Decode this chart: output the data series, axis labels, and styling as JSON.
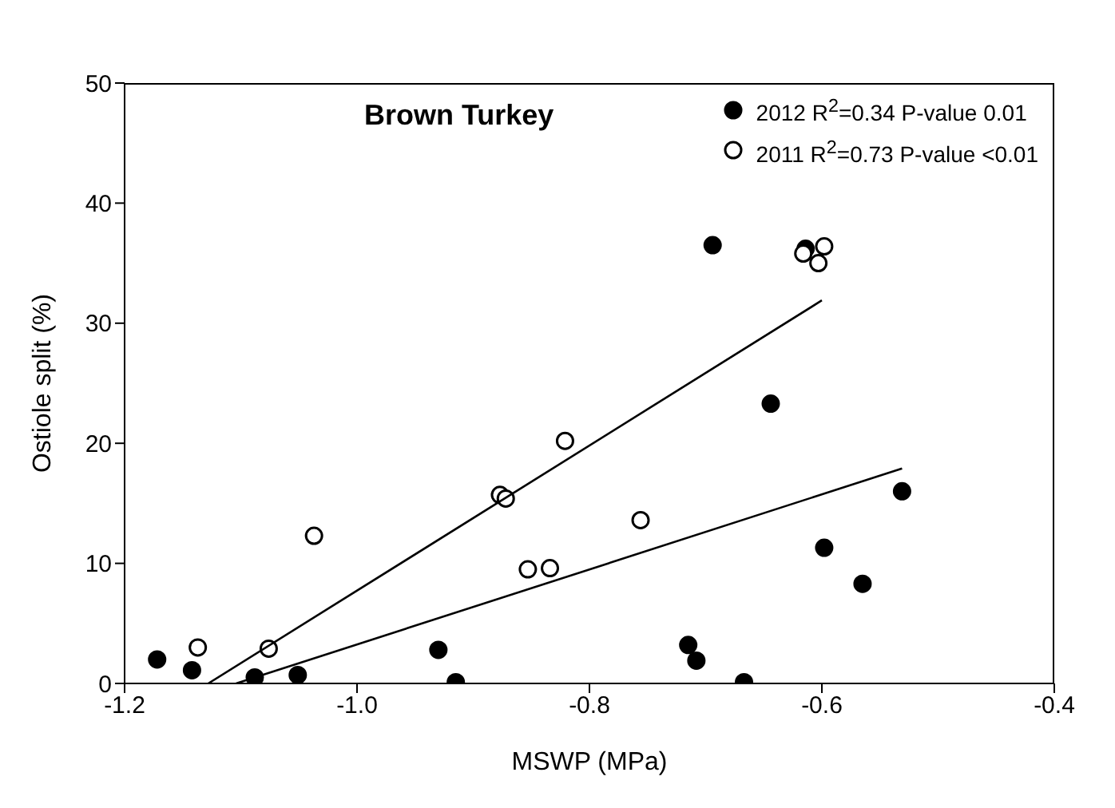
{
  "chart_data": {
    "type": "scatter",
    "title": "Brown Turkey",
    "xlabel": "MSWP (MPa)",
    "ylabel": "Ostiole split (%)",
    "xlim": [
      -1.2,
      -0.4
    ],
    "xticks": [
      {
        "value": -1.2,
        "label": "-1.2"
      },
      {
        "value": -1.0,
        "label": "-1.0"
      },
      {
        "value": -0.8,
        "label": "-0.8"
      },
      {
        "value": -0.6,
        "label": "-0.6"
      },
      {
        "value": -0.4,
        "label": "-0.4"
      }
    ],
    "ylim": [
      0,
      50
    ],
    "yticks": [
      0,
      10,
      20,
      30,
      40,
      50
    ],
    "grid": false,
    "legend": "top right",
    "marker": "circle",
    "series": [
      {
        "name": "2012 R$^{2}$=0.34 P-value 0.01",
        "color": "#000000",
        "x": [
          -1.172,
          -1.142,
          -1.088,
          -1.051,
          -0.93,
          -0.915,
          -0.694,
          -0.614,
          -0.644,
          -0.531,
          -0.598,
          -0.565,
          -0.715,
          -0.708,
          -0.667
        ],
        "values": [
          2.0,
          1.1,
          0.5,
          0.7,
          2.8,
          0.1,
          36.5,
          36.2,
          23.3,
          16.0,
          11.3,
          8.3,
          3.2,
          1.9,
          0.1
        ]
      },
      {
        "name": "2011 R$^{2}$=0.73 P-value <0.01",
        "color": "#000000",
        "x": [
          -1.137,
          -1.076,
          -1.037,
          -0.877,
          -0.872,
          -0.853,
          -0.834,
          -0.756,
          -0.821,
          -0.616,
          -0.598,
          -0.603
        ],
        "values": [
          3.0,
          2.9,
          12.3,
          15.7,
          15.4,
          9.5,
          9.6,
          13.6,
          20.2,
          35.8,
          36.4,
          35.0
        ]
      },
      {
        "type": "line",
        "color": "#000000",
        "marker": "none",
        "x": [
          -1.128,
          -0.6
        ],
        "values": [
          0,
          31.9
        ]
      },
      {
        "type": "line",
        "color": "#000000",
        "marker": "none",
        "x": [
          -1.104,
          -0.531
        ],
        "values": [
          0,
          17.9
        ]
      }
    ]
  }
}
